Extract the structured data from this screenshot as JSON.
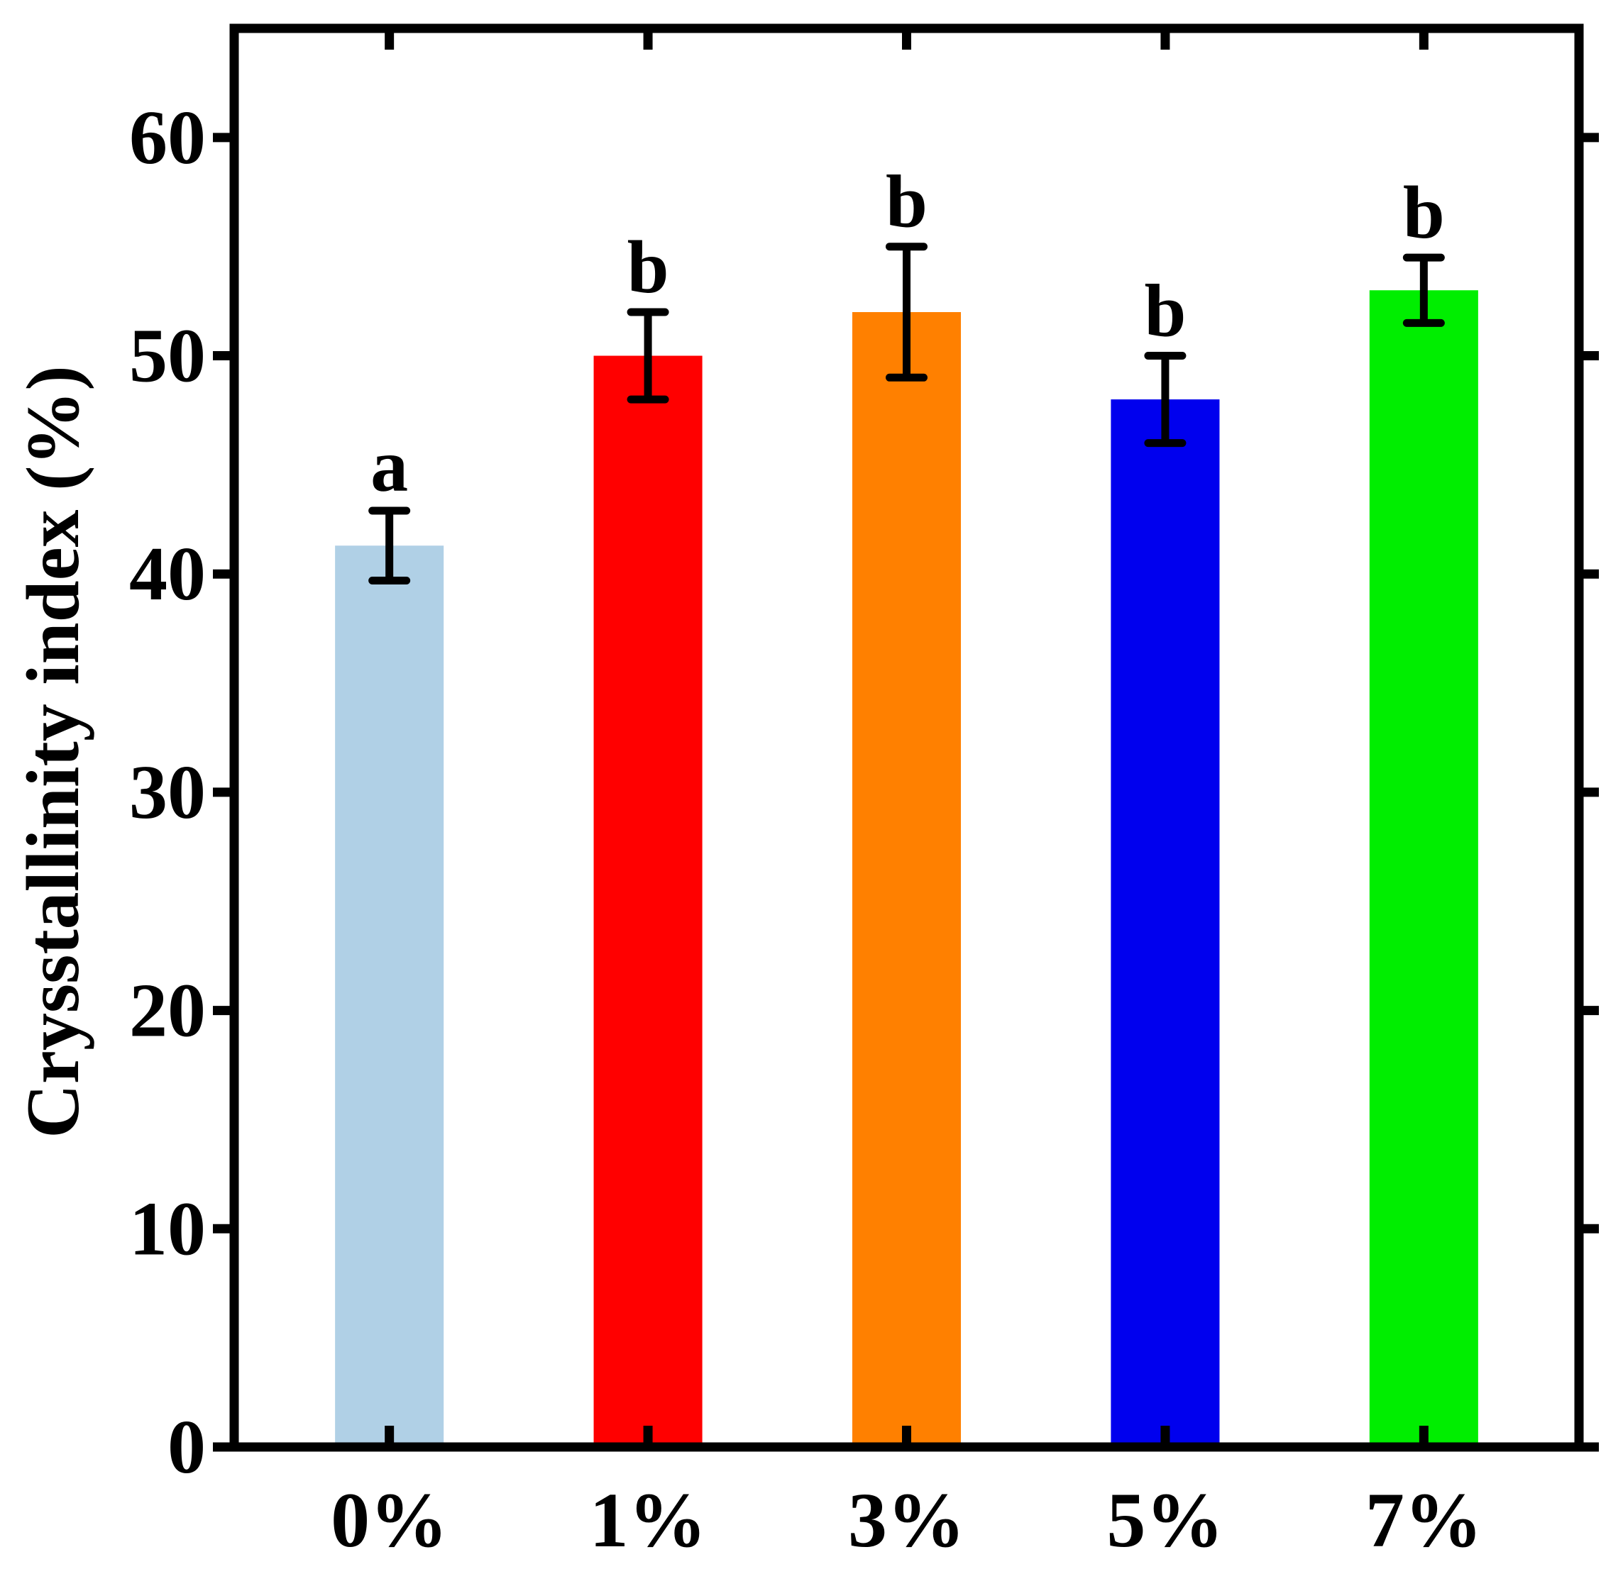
{
  "chart_data": {
    "type": "bar",
    "title": "",
    "xlabel": "",
    "ylabel": "Crysstallinity index (%)",
    "ylim": [
      0,
      65
    ],
    "yticks": [
      "0",
      "10",
      "20",
      "30",
      "40",
      "50",
      "60"
    ],
    "grid": false,
    "categories": [
      "0%",
      "1%",
      "3%",
      "5%",
      "7%"
    ],
    "values": [
      41.3,
      50.0,
      52.0,
      48.0,
      53.0
    ],
    "errors": [
      1.6,
      2.0,
      3.0,
      2.0,
      1.5
    ],
    "significance": [
      "a",
      "b",
      "b",
      "b",
      "b"
    ],
    "colors": [
      "#b0d0e6",
      "#ff0000",
      "#ff8000",
      "#0000ee",
      "#00ee00"
    ]
  }
}
